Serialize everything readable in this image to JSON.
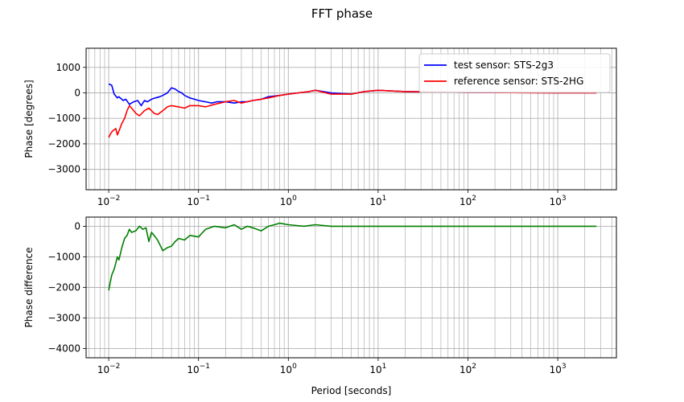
{
  "title": "FFT phase",
  "chart_data": [
    {
      "type": "line",
      "xscale": "log",
      "xlim": [
        0.0056,
        4500
      ],
      "ylim": [
        -3800,
        1750
      ],
      "xticks": [
        0.01,
        0.1,
        1,
        10,
        100,
        1000
      ],
      "xticklabels": [
        {
          "base": "10",
          "exp": "−2"
        },
        {
          "base": "10",
          "exp": "−1"
        },
        {
          "base": "10",
          "exp": "0"
        },
        {
          "base": "10",
          "exp": "1"
        },
        {
          "base": "10",
          "exp": "2"
        },
        {
          "base": "10",
          "exp": "3"
        }
      ],
      "yticks": [
        1000,
        0,
        -1000,
        -2000,
        -3000
      ],
      "yticklabels": [
        "1000",
        "0",
        "−1000",
        "−2000",
        "−3000"
      ],
      "ylabel": "Phase [degrees]",
      "grid": true,
      "legend_position": "top-right",
      "series": [
        {
          "name": "test sensor: STS-2g3",
          "color": "#0000ff",
          "x": [
            0.01,
            0.0108,
            0.0115,
            0.0125,
            0.013,
            0.0145,
            0.0155,
            0.017,
            0.019,
            0.021,
            0.023,
            0.025,
            0.027,
            0.03,
            0.033,
            0.037,
            0.04,
            0.045,
            0.05,
            0.055,
            0.06,
            0.065,
            0.07,
            0.08,
            0.09,
            0.1,
            0.12,
            0.14,
            0.16,
            0.2,
            0.25,
            0.3,
            0.35,
            0.4,
            0.5,
            0.6,
            0.8,
            1.0,
            1.3,
            1.7,
            2.0,
            3.0,
            5.0,
            7.0,
            10,
            20,
            50,
            100,
            300,
            1000,
            2700
          ],
          "y": [
            350,
            300,
            -50,
            -200,
            -150,
            -300,
            -250,
            -450,
            -350,
            -300,
            -500,
            -300,
            -350,
            -250,
            -200,
            -150,
            -100,
            0,
            200,
            150,
            50,
            0,
            -100,
            -200,
            -250,
            -300,
            -350,
            -400,
            -350,
            -350,
            -400,
            -350,
            -350,
            -300,
            -250,
            -150,
            -100,
            -50,
            0,
            50,
            100,
            0,
            -50,
            50,
            100,
            50,
            30,
            20,
            10,
            0,
            0
          ]
        },
        {
          "name": "reference sensor: STS-2HG",
          "color": "#ff0000",
          "x": [
            0.01,
            0.0105,
            0.011,
            0.012,
            0.0125,
            0.013,
            0.014,
            0.015,
            0.016,
            0.017,
            0.018,
            0.02,
            0.022,
            0.025,
            0.028,
            0.032,
            0.035,
            0.04,
            0.045,
            0.05,
            0.06,
            0.07,
            0.08,
            0.1,
            0.12,
            0.15,
            0.2,
            0.25,
            0.3,
            0.4,
            0.5,
            0.6,
            0.8,
            1.0,
            1.3,
            1.7,
            2.0,
            3.0,
            5.0,
            7.0,
            10,
            20,
            50,
            100,
            300,
            1000,
            2700
          ],
          "y": [
            -1750,
            -1600,
            -1500,
            -1400,
            -1650,
            -1500,
            -1200,
            -1000,
            -700,
            -500,
            -600,
            -800,
            -900,
            -700,
            -600,
            -800,
            -850,
            -700,
            -550,
            -500,
            -550,
            -600,
            -500,
            -500,
            -550,
            -450,
            -350,
            -300,
            -400,
            -300,
            -250,
            -200,
            -100,
            -50,
            0,
            50,
            100,
            -50,
            -50,
            50,
            100,
            50,
            30,
            20,
            10,
            0,
            0
          ]
        }
      ]
    },
    {
      "type": "line",
      "xscale": "log",
      "xlim": [
        0.0056,
        4500
      ],
      "ylim": [
        -4300,
        300
      ],
      "xticks": [
        0.01,
        0.1,
        1,
        10,
        100,
        1000
      ],
      "xticklabels": [
        {
          "base": "10",
          "exp": "−2"
        },
        {
          "base": "10",
          "exp": "−1"
        },
        {
          "base": "10",
          "exp": "0"
        },
        {
          "base": "10",
          "exp": "1"
        },
        {
          "base": "10",
          "exp": "2"
        },
        {
          "base": "10",
          "exp": "3"
        }
      ],
      "yticks": [
        0,
        -1000,
        -2000,
        -3000,
        -4000
      ],
      "yticklabels": [
        "0",
        "−1000",
        "−2000",
        "−3000",
        "−4000"
      ],
      "xlabel": "Period [seconds]",
      "ylabel": "Phase difference",
      "grid": true,
      "series": [
        {
          "color": "#008000",
          "x": [
            0.01,
            0.0103,
            0.0108,
            0.0115,
            0.012,
            0.0125,
            0.013,
            0.014,
            0.015,
            0.016,
            0.017,
            0.018,
            0.02,
            0.022,
            0.024,
            0.026,
            0.028,
            0.03,
            0.032,
            0.035,
            0.04,
            0.045,
            0.05,
            0.055,
            0.06,
            0.07,
            0.08,
            0.1,
            0.12,
            0.15,
            0.2,
            0.25,
            0.3,
            0.35,
            0.4,
            0.5,
            0.6,
            0.7,
            0.8,
            1.0,
            1.5,
            2.0,
            3.0,
            5.0,
            10,
            20,
            50,
            100,
            300,
            1000,
            2700
          ],
          "y": [
            -2100,
            -1900,
            -1600,
            -1400,
            -1200,
            -1000,
            -1100,
            -700,
            -400,
            -300,
            -100,
            -200,
            -150,
            0,
            -100,
            -50,
            -500,
            -200,
            -300,
            -450,
            -800,
            -700,
            -650,
            -500,
            -400,
            -450,
            -300,
            -350,
            -100,
            0,
            -50,
            50,
            -100,
            0,
            -50,
            -150,
            0,
            50,
            100,
            50,
            0,
            50,
            0,
            0,
            0,
            0,
            0,
            0,
            0,
            0,
            0
          ]
        }
      ]
    }
  ]
}
